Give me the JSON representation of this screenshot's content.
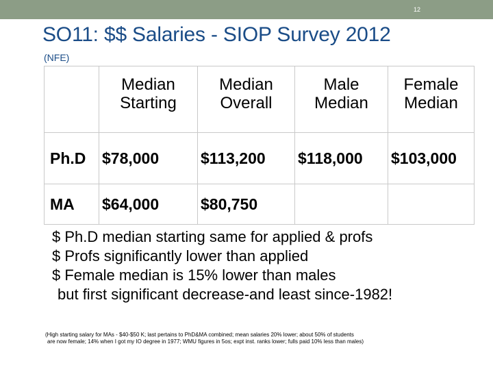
{
  "slide": {
    "number": "12",
    "title": "SO11: $$ Salaries - SIOP Survey 2012",
    "subtitle": "(NFE)"
  },
  "table": {
    "headers": [
      "",
      "Median\nStarting",
      "Median\nOverall",
      "Male\nMedian",
      "Female\nMedian"
    ],
    "header_lines": [
      [
        "",
        ""
      ],
      [
        "Median",
        "Starting"
      ],
      [
        "Median",
        "Overall"
      ],
      [
        "Male",
        "Median"
      ],
      [
        "Female",
        "Median"
      ]
    ],
    "rows": [
      {
        "label": "Ph.D",
        "values": [
          "$78,000",
          "$113,200",
          "$118,000",
          "$103,000"
        ]
      },
      {
        "label": "MA",
        "values": [
          "$64,000",
          "$80,750",
          "",
          ""
        ]
      }
    ]
  },
  "notes": [
    "$ Ph.D median starting same for applied & profs",
    "$ Profs significantly lower than applied",
    "$ Female median is 15% lower than males",
    "but first significant decrease-and least since-1982!"
  ],
  "footnote": [
    "(High starting salary for MAs - $40-$50 K; last pertains to PhD&MA combined; mean salaries 20% lower;  about 50% of students",
    "are now female; 14% when I got my IO degree in 1977; WMU figures in 5os; expt inst. ranks lower;  fulls paid 10% less than males)"
  ],
  "colors": {
    "topbar": "#8c9d86",
    "title": "#1a4c87",
    "grid": "#c9c9c9"
  }
}
